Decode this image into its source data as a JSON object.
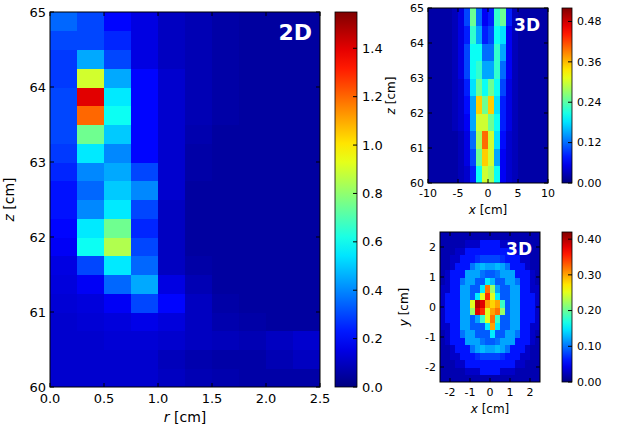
{
  "chart_data": [
    {
      "type": "heatmap",
      "title": "2D",
      "x_label": "r [cm]",
      "y_label": "z [cm]",
      "xlim": [
        0,
        2.5
      ],
      "ylim": [
        60,
        65
      ],
      "xticks": [
        {
          "value": 0,
          "label": "0.0"
        },
        0.5,
        {
          "value": 1,
          "label": "1.0"
        },
        1.5,
        {
          "value": 2,
          "label": "2.0"
        },
        2.5
      ],
      "yticks": [
        60,
        61,
        62,
        63,
        64,
        65
      ],
      "x": [
        0.125,
        0.375,
        0.625,
        0.875,
        1.125,
        1.375,
        1.625,
        1.875,
        2.125,
        2.375
      ],
      "y": [
        60.125,
        60.375,
        60.625,
        60.875,
        61.125,
        61.375,
        61.625,
        61.875,
        62.125,
        62.375,
        62.625,
        62.875,
        63.125,
        63.375,
        63.625,
        63.875,
        64.125,
        64.375,
        64.625,
        64.875
      ],
      "values": [
        [
          0.12,
          0.12,
          0.12,
          0.12,
          0.1,
          0.08,
          0.07,
          0.06,
          0.06,
          0.06
        ],
        [
          0.12,
          0.12,
          0.12,
          0.12,
          0.09,
          0.07,
          0.06,
          0.06,
          0.08,
          0.1
        ],
        [
          0.12,
          0.12,
          0.13,
          0.13,
          0.12,
          0.1,
          0.09,
          0.08,
          0.1,
          0.12
        ],
        [
          0.12,
          0.13,
          0.14,
          0.16,
          0.14,
          0.1,
          0.07,
          0.06,
          0.05,
          0.05
        ],
        [
          0.13,
          0.14,
          0.18,
          0.3,
          0.2,
          0.1,
          0.06,
          0.05,
          0.05,
          0.05
        ],
        [
          0.14,
          0.18,
          0.35,
          0.45,
          0.15,
          0.08,
          0.05,
          0.05,
          0.05,
          0.05
        ],
        [
          0.15,
          0.3,
          0.55,
          0.35,
          0.1,
          0.06,
          0.05,
          0.05,
          0.05,
          0.05
        ],
        [
          0.18,
          0.6,
          0.85,
          0.3,
          0.1,
          0.05,
          0.05,
          0.05,
          0.05,
          0.05
        ],
        [
          0.2,
          0.55,
          0.75,
          0.25,
          0.1,
          0.05,
          0.05,
          0.05,
          0.05,
          0.05
        ],
        [
          0.22,
          0.4,
          0.55,
          0.3,
          0.1,
          0.05,
          0.05,
          0.05,
          0.05,
          0.05
        ],
        [
          0.22,
          0.35,
          0.5,
          0.4,
          0.12,
          0.05,
          0.05,
          0.05,
          0.05,
          0.05
        ],
        [
          0.25,
          0.4,
          0.45,
          0.3,
          0.12,
          0.06,
          0.05,
          0.05,
          0.05,
          0.05
        ],
        [
          0.28,
          0.55,
          0.4,
          0.2,
          0.12,
          0.06,
          0.05,
          0.05,
          0.05,
          0.05
        ],
        [
          0.3,
          0.75,
          0.5,
          0.2,
          0.12,
          0.07,
          0.05,
          0.05,
          0.05,
          0.05
        ],
        [
          0.3,
          1.2,
          0.6,
          0.2,
          0.12,
          0.08,
          0.06,
          0.05,
          0.05,
          0.05
        ],
        [
          0.3,
          1.4,
          0.55,
          0.2,
          0.12,
          0.08,
          0.06,
          0.05,
          0.05,
          0.05
        ],
        [
          0.28,
          0.9,
          0.45,
          0.2,
          0.12,
          0.08,
          0.06,
          0.05,
          0.05,
          0.05
        ],
        [
          0.28,
          0.45,
          0.3,
          0.15,
          0.1,
          0.08,
          0.06,
          0.05,
          0.05,
          0.05
        ],
        [
          0.3,
          0.3,
          0.25,
          0.15,
          0.1,
          0.08,
          0.06,
          0.05,
          0.05,
          0.05
        ],
        [
          0.35,
          0.3,
          0.2,
          0.15,
          0.1,
          0.08,
          0.06,
          0.05,
          0.05,
          0.05
        ]
      ],
      "colorbar_lim": [
        0,
        1.55
      ],
      "colorbar_ticks": [
        {
          "value": 0,
          "label": "0.0"
        },
        0.2,
        0.4,
        0.6,
        0.8,
        {
          "value": 1,
          "label": "1.0"
        },
        1.2,
        1.4
      ]
    },
    {
      "type": "heatmap",
      "title": "3D",
      "x_label": "x [cm]",
      "y_label": "z [cm]",
      "xlim": [
        -10,
        10
      ],
      "ylim": [
        60,
        65
      ],
      "xticks": [
        -10,
        -5,
        0,
        5,
        10
      ],
      "yticks": [
        60,
        61,
        62,
        63,
        64,
        65
      ],
      "x": [
        -9.5,
        -8.5,
        -7.5,
        -6.5,
        -5.5,
        -4.5,
        -3.5,
        -2.5,
        -1.5,
        -0.5,
        0.5,
        1.5,
        2.5,
        3.5,
        4.5,
        5.5,
        6.5,
        7.5,
        8.5,
        9.5
      ],
      "y": [
        60.25,
        60.75,
        61.25,
        61.75,
        62.25,
        62.75,
        63.25,
        63.75,
        64.25,
        64.75
      ],
      "values": [
        [
          0.02,
          0.02,
          0.02,
          0.02,
          0.02,
          0.03,
          0.04,
          0.08,
          0.2,
          0.3,
          0.28,
          0.2,
          0.06,
          0.04,
          0.03,
          0.02,
          0.02,
          0.02,
          0.02,
          0.02
        ],
        [
          0.02,
          0.02,
          0.02,
          0.02,
          0.02,
          0.03,
          0.05,
          0.1,
          0.25,
          0.35,
          0.3,
          0.15,
          0.06,
          0.04,
          0.03,
          0.02,
          0.02,
          0.02,
          0.02,
          0.02
        ],
        [
          0.02,
          0.02,
          0.02,
          0.02,
          0.02,
          0.03,
          0.05,
          0.12,
          0.28,
          0.4,
          0.3,
          0.18,
          0.07,
          0.04,
          0.03,
          0.02,
          0.02,
          0.02,
          0.02,
          0.02
        ],
        [
          0.02,
          0.02,
          0.02,
          0.02,
          0.03,
          0.04,
          0.06,
          0.15,
          0.3,
          0.3,
          0.25,
          0.2,
          0.08,
          0.05,
          0.03,
          0.02,
          0.02,
          0.02,
          0.02,
          0.02
        ],
        [
          0.02,
          0.02,
          0.02,
          0.02,
          0.03,
          0.04,
          0.07,
          0.15,
          0.35,
          0.25,
          0.35,
          0.18,
          0.08,
          0.05,
          0.03,
          0.02,
          0.02,
          0.02,
          0.02,
          0.02
        ],
        [
          0.02,
          0.02,
          0.02,
          0.02,
          0.03,
          0.04,
          0.08,
          0.18,
          0.25,
          0.2,
          0.25,
          0.2,
          0.1,
          0.05,
          0.03,
          0.02,
          0.02,
          0.02,
          0.02,
          0.02
        ],
        [
          0.02,
          0.02,
          0.02,
          0.02,
          0.03,
          0.05,
          0.1,
          0.2,
          0.22,
          0.15,
          0.15,
          0.22,
          0.12,
          0.06,
          0.03,
          0.02,
          0.02,
          0.02,
          0.02,
          0.02
        ],
        [
          0.02,
          0.02,
          0.02,
          0.02,
          0.03,
          0.05,
          0.1,
          0.2,
          0.2,
          0.12,
          0.12,
          0.22,
          0.15,
          0.06,
          0.03,
          0.02,
          0.02,
          0.02,
          0.02,
          0.02
        ],
        [
          0.02,
          0.02,
          0.02,
          0.02,
          0.03,
          0.05,
          0.08,
          0.22,
          0.15,
          0.08,
          0.1,
          0.2,
          0.18,
          0.06,
          0.03,
          0.02,
          0.02,
          0.02,
          0.02,
          0.02
        ],
        [
          0.02,
          0.02,
          0.02,
          0.02,
          0.03,
          0.05,
          0.1,
          0.25,
          0.12,
          0.06,
          0.08,
          0.22,
          0.25,
          0.08,
          0.03,
          0.02,
          0.02,
          0.02,
          0.02,
          0.02
        ]
      ],
      "colorbar_lim": [
        0,
        0.52
      ],
      "colorbar_ticks": [
        {
          "value": 0,
          "label": "0.00"
        },
        0.12,
        0.24,
        0.36,
        0.48
      ]
    },
    {
      "type": "heatmap",
      "title": "3D",
      "x_label": "x [cm]",
      "y_label": "y [cm]",
      "xlim": [
        -2.5,
        2.5
      ],
      "ylim": [
        -2.5,
        2.5
      ],
      "xticks": [
        -2,
        -1,
        0,
        1,
        2
      ],
      "yticks": [
        -2,
        -1,
        0,
        1,
        2
      ],
      "x": [
        -2.375,
        -2.125,
        -1.875,
        -1.625,
        -1.375,
        -1.125,
        -0.875,
        -0.625,
        -0.375,
        -0.125,
        0.125,
        0.375,
        0.625,
        0.875,
        1.125,
        1.375,
        1.625,
        1.875,
        2.125,
        2.375
      ],
      "y": [
        -2.375,
        -2.125,
        -1.875,
        -1.625,
        -1.375,
        -1.125,
        -0.875,
        -0.625,
        -0.375,
        -0.125,
        0.125,
        0.375,
        0.625,
        0.875,
        1.125,
        1.375,
        1.625,
        1.875,
        2.125,
        2.375
      ],
      "values": [
        [
          0.02,
          0.02,
          0.02,
          0.02,
          0.02,
          0.02,
          0.02,
          0.02,
          0.02,
          0.02,
          0.02,
          0.02,
          0.02,
          0.02,
          0.02,
          0.02,
          0.02,
          0.02,
          0.02,
          0.02
        ],
        [
          0.02,
          0.02,
          0.02,
          0.02,
          0.02,
          0.03,
          0.03,
          0.03,
          0.06,
          0.06,
          0.06,
          0.06,
          0.03,
          0.03,
          0.03,
          0.02,
          0.02,
          0.02,
          0.02,
          0.02
        ],
        [
          0.02,
          0.02,
          0.02,
          0.03,
          0.03,
          0.06,
          0.06,
          0.06,
          0.06,
          0.06,
          0.06,
          0.06,
          0.06,
          0.06,
          0.06,
          0.03,
          0.03,
          0.02,
          0.02,
          0.02
        ],
        [
          0.02,
          0.02,
          0.03,
          0.03,
          0.06,
          0.06,
          0.06,
          0.07,
          0.08,
          0.08,
          0.08,
          0.08,
          0.07,
          0.06,
          0.06,
          0.06,
          0.03,
          0.03,
          0.02,
          0.02
        ],
        [
          0.02,
          0.02,
          0.03,
          0.06,
          0.06,
          0.06,
          0.1,
          0.12,
          0.13,
          0.12,
          0.12,
          0.13,
          0.12,
          0.1,
          0.06,
          0.06,
          0.06,
          0.03,
          0.02,
          0.02
        ],
        [
          0.02,
          0.03,
          0.06,
          0.06,
          0.06,
          0.12,
          0.12,
          0.12,
          0.1,
          0.09,
          0.09,
          0.1,
          0.12,
          0.12,
          0.12,
          0.06,
          0.06,
          0.06,
          0.03,
          0.02
        ],
        [
          0.02,
          0.03,
          0.06,
          0.06,
          0.1,
          0.12,
          0.12,
          0.09,
          0.09,
          0.09,
          0.15,
          0.09,
          0.09,
          0.12,
          0.12,
          0.1,
          0.06,
          0.06,
          0.03,
          0.02
        ],
        [
          0.03,
          0.03,
          0.06,
          0.06,
          0.12,
          0.12,
          0.09,
          0.09,
          0.09,
          0.15,
          0.3,
          0.15,
          0.09,
          0.09,
          0.12,
          0.12,
          0.06,
          0.06,
          0.03,
          0.03
        ],
        [
          0.03,
          0.06,
          0.06,
          0.06,
          0.12,
          0.12,
          0.09,
          0.12,
          0.18,
          0.25,
          0.32,
          0.18,
          0.09,
          0.09,
          0.12,
          0.12,
          0.06,
          0.06,
          0.06,
          0.03
        ],
        [
          0.03,
          0.06,
          0.06,
          0.06,
          0.12,
          0.12,
          0.22,
          0.38,
          0.35,
          0.25,
          0.3,
          0.32,
          0.22,
          0.09,
          0.12,
          0.12,
          0.06,
          0.06,
          0.06,
          0.03
        ],
        [
          0.03,
          0.06,
          0.06,
          0.06,
          0.12,
          0.12,
          0.25,
          0.4,
          0.38,
          0.3,
          0.28,
          0.3,
          0.18,
          0.09,
          0.12,
          0.12,
          0.06,
          0.06,
          0.06,
          0.03
        ],
        [
          0.03,
          0.06,
          0.06,
          0.06,
          0.12,
          0.12,
          0.09,
          0.15,
          0.25,
          0.35,
          0.25,
          0.15,
          0.09,
          0.09,
          0.12,
          0.12,
          0.06,
          0.06,
          0.06,
          0.03
        ],
        [
          0.03,
          0.03,
          0.06,
          0.06,
          0.12,
          0.12,
          0.09,
          0.09,
          0.15,
          0.32,
          0.22,
          0.12,
          0.09,
          0.09,
          0.12,
          0.12,
          0.06,
          0.06,
          0.03,
          0.03
        ],
        [
          0.02,
          0.03,
          0.06,
          0.06,
          0.1,
          0.12,
          0.12,
          0.09,
          0.09,
          0.15,
          0.13,
          0.09,
          0.09,
          0.12,
          0.12,
          0.1,
          0.06,
          0.06,
          0.03,
          0.02
        ],
        [
          0.02,
          0.03,
          0.06,
          0.06,
          0.06,
          0.12,
          0.12,
          0.12,
          0.1,
          0.09,
          0.09,
          0.1,
          0.12,
          0.12,
          0.12,
          0.06,
          0.06,
          0.06,
          0.03,
          0.02
        ],
        [
          0.02,
          0.02,
          0.03,
          0.06,
          0.06,
          0.06,
          0.1,
          0.12,
          0.13,
          0.12,
          0.12,
          0.13,
          0.12,
          0.1,
          0.06,
          0.06,
          0.06,
          0.03,
          0.02,
          0.02
        ],
        [
          0.02,
          0.02,
          0.03,
          0.03,
          0.06,
          0.06,
          0.06,
          0.07,
          0.08,
          0.08,
          0.08,
          0.08,
          0.07,
          0.06,
          0.06,
          0.06,
          0.03,
          0.03,
          0.02,
          0.02
        ],
        [
          0.02,
          0.02,
          0.02,
          0.03,
          0.03,
          0.06,
          0.06,
          0.06,
          0.06,
          0.06,
          0.06,
          0.06,
          0.06,
          0.06,
          0.06,
          0.03,
          0.03,
          0.02,
          0.02,
          0.02
        ],
        [
          0.02,
          0.02,
          0.02,
          0.02,
          0.02,
          0.03,
          0.03,
          0.03,
          0.06,
          0.06,
          0.06,
          0.06,
          0.03,
          0.03,
          0.03,
          0.02,
          0.02,
          0.02,
          0.02,
          0.02
        ],
        [
          0.02,
          0.02,
          0.02,
          0.02,
          0.02,
          0.02,
          0.02,
          0.02,
          0.02,
          0.02,
          0.02,
          0.02,
          0.02,
          0.02,
          0.02,
          0.02,
          0.02,
          0.02,
          0.02,
          0.02
        ]
      ],
      "colorbar_lim": [
        0,
        0.42
      ],
      "colorbar_ticks": [
        {
          "value": 0,
          "label": "0.00"
        },
        {
          "value": 0.1,
          "label": "0.10"
        },
        {
          "value": 0.2,
          "label": "0.20"
        },
        {
          "value": 0.3,
          "label": "0.30"
        },
        {
          "value": 0.4,
          "label": "0.40"
        }
      ]
    }
  ]
}
